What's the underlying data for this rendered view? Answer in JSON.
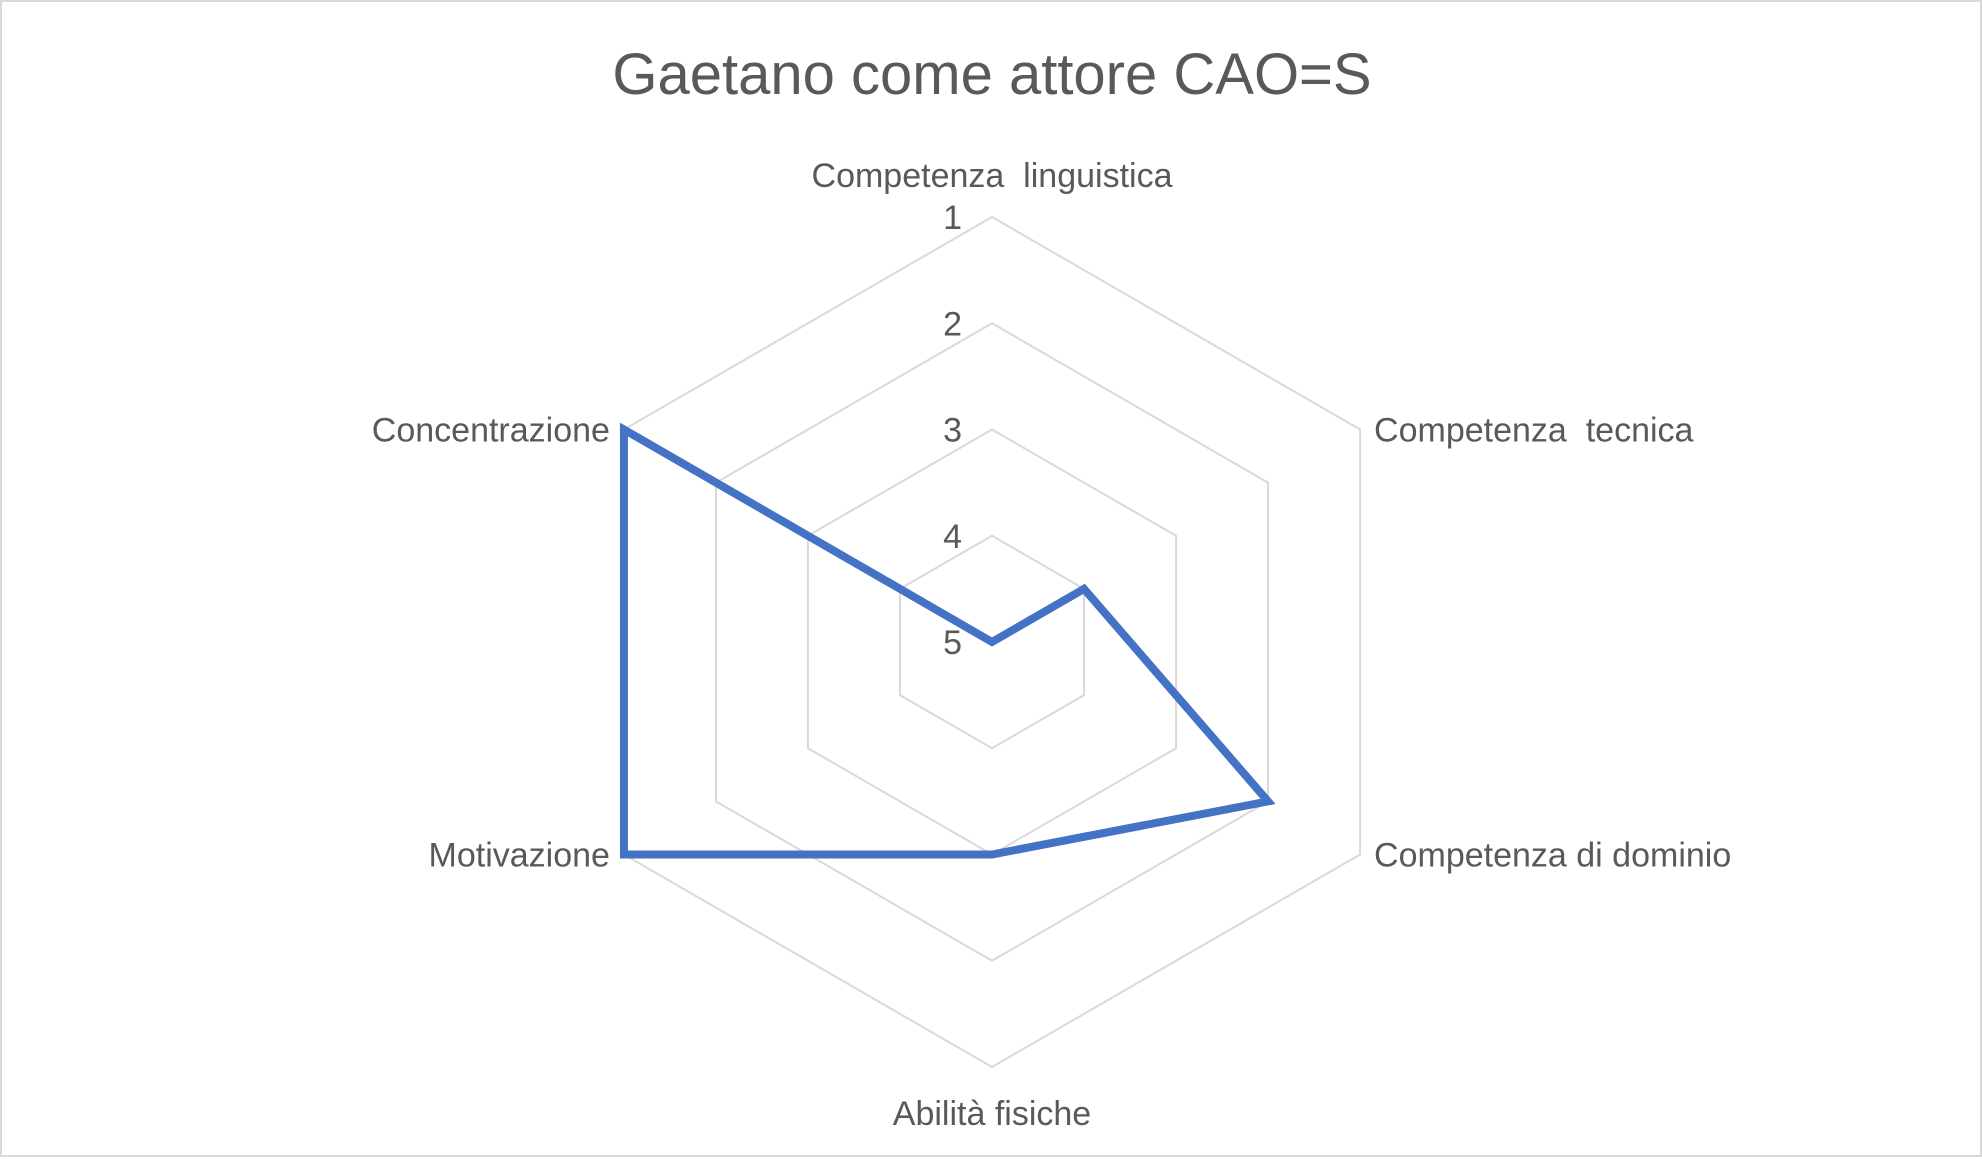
{
  "chart_data": {
    "type": "radar",
    "title": "Gaetano come attore CAO=S",
    "categories": [
      "Competenza  linguistica",
      "Competenza  tecnica",
      "Competenza di dominio",
      "Abilità fisiche",
      "Motivazione",
      "Concentrazione"
    ],
    "axis": {
      "ticks": [
        "1",
        "2",
        "3",
        "4",
        "5"
      ],
      "min": 1,
      "max": 5,
      "reversed": true
    },
    "series": [
      {
        "values": [
          5,
          4,
          2,
          3,
          1,
          1
        ],
        "color": "#4472c4"
      }
    ],
    "grid": true,
    "legend": "none"
  }
}
